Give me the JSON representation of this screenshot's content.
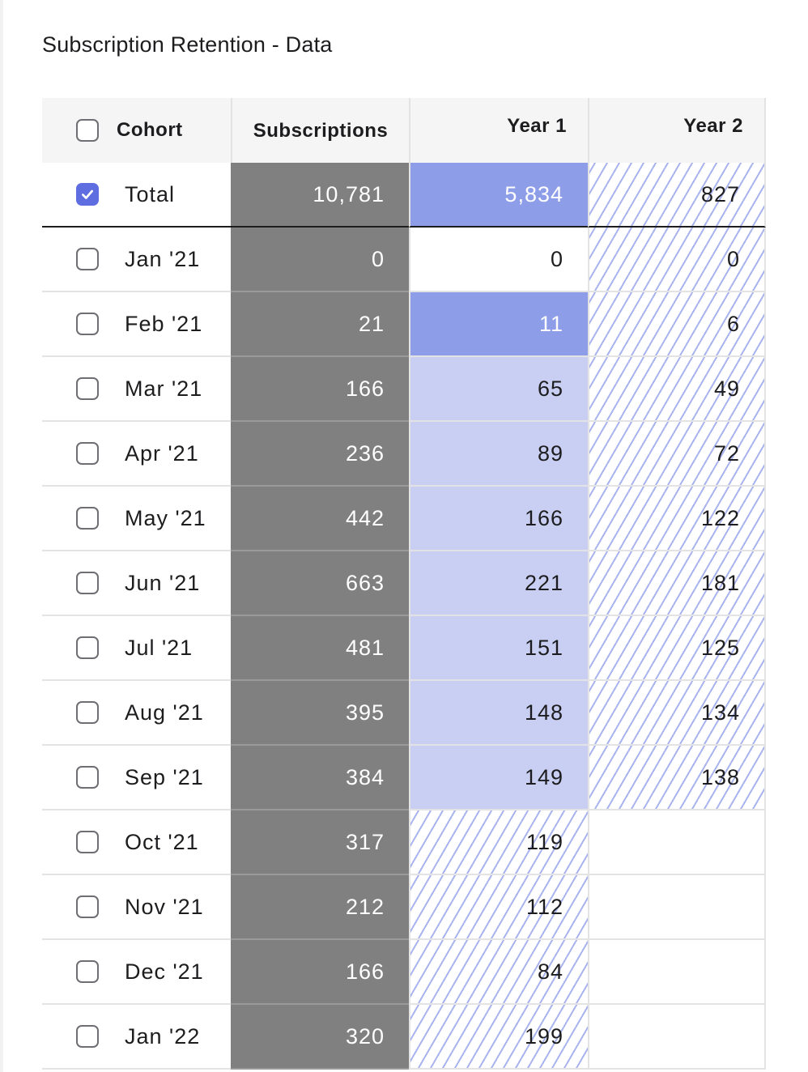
{
  "title": "Subscription Retention - Data",
  "colors": {
    "subscriptions_bg": "#808080",
    "retention_high": "#8e9de8",
    "retention_low": "#c8cff3",
    "hatch_line": "#a9b4ee",
    "checkbox_checked": "#5e6ee0"
  },
  "columns": {
    "cohort": "Cohort",
    "subscriptions": "Subscriptions",
    "year1": "Year 1",
    "year2": "Year 2"
  },
  "rows": [
    {
      "cohort": "Total",
      "subscriptions": "10,781",
      "year1": "5,834",
      "year1_style": "dark",
      "year2": "827",
      "year2_style": "hatch",
      "checked": true
    },
    {
      "cohort": "Jan '21",
      "subscriptions": "0",
      "year1": "0",
      "year1_style": "white",
      "year2": "0",
      "year2_style": "hatch",
      "checked": false
    },
    {
      "cohort": "Feb '21",
      "subscriptions": "21",
      "year1": "11",
      "year1_style": "dark",
      "year2": "6",
      "year2_style": "hatch",
      "checked": false
    },
    {
      "cohort": "Mar '21",
      "subscriptions": "166",
      "year1": "65",
      "year1_style": "light",
      "year2": "49",
      "year2_style": "hatch",
      "checked": false
    },
    {
      "cohort": "Apr '21",
      "subscriptions": "236",
      "year1": "89",
      "year1_style": "light",
      "year2": "72",
      "year2_style": "hatch",
      "checked": false
    },
    {
      "cohort": "May '21",
      "subscriptions": "442",
      "year1": "166",
      "year1_style": "light",
      "year2": "122",
      "year2_style": "hatch",
      "checked": false
    },
    {
      "cohort": "Jun '21",
      "subscriptions": "663",
      "year1": "221",
      "year1_style": "light",
      "year2": "181",
      "year2_style": "hatch",
      "checked": false
    },
    {
      "cohort": "Jul '21",
      "subscriptions": "481",
      "year1": "151",
      "year1_style": "light",
      "year2": "125",
      "year2_style": "hatch",
      "checked": false
    },
    {
      "cohort": "Aug '21",
      "subscriptions": "395",
      "year1": "148",
      "year1_style": "light",
      "year2": "134",
      "year2_style": "hatch",
      "checked": false
    },
    {
      "cohort": "Sep '21",
      "subscriptions": "384",
      "year1": "149",
      "year1_style": "light",
      "year2": "138",
      "year2_style": "hatch",
      "checked": false
    },
    {
      "cohort": "Oct '21",
      "subscriptions": "317",
      "year1": "119",
      "year1_style": "hatch",
      "year2": "",
      "year2_style": "empty",
      "checked": false
    },
    {
      "cohort": "Nov '21",
      "subscriptions": "212",
      "year1": "112",
      "year1_style": "hatch",
      "year2": "",
      "year2_style": "empty",
      "checked": false
    },
    {
      "cohort": "Dec '21",
      "subscriptions": "166",
      "year1": "84",
      "year1_style": "hatch",
      "year2": "",
      "year2_style": "empty",
      "checked": false
    },
    {
      "cohort": "Jan '22",
      "subscriptions": "320",
      "year1": "199",
      "year1_style": "hatch",
      "year2": "",
      "year2_style": "empty",
      "checked": false
    }
  ]
}
